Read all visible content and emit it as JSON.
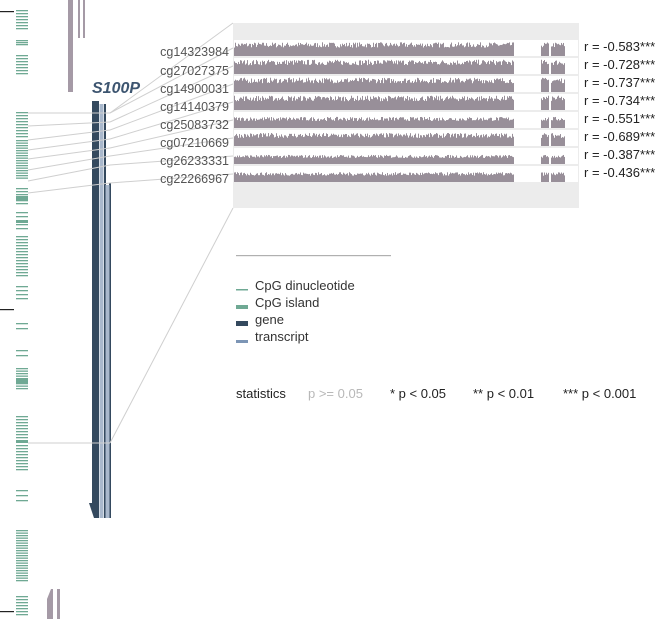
{
  "gene": {
    "name": "S100P"
  },
  "probes": [
    {
      "id": "cg14323984",
      "r_label": "r = -0.583***"
    },
    {
      "id": "cg27027375",
      "r_label": "r = -0.728***"
    },
    {
      "id": "cg14900031",
      "r_label": "r = -0.737***"
    },
    {
      "id": "cg14140379",
      "r_label": "r = -0.734***"
    },
    {
      "id": "cg25083732",
      "r_label": "r = -0.551***"
    },
    {
      "id": "cg07210669",
      "r_label": "r = -0.689***"
    },
    {
      "id": "cg26233331",
      "r_label": "r = -0.387***"
    },
    {
      "id": "cg22266967",
      "r_label": "r = -0.436***"
    }
  ],
  "legend": {
    "items": [
      {
        "label": "CpG dinucleotide",
        "color": "#6fa994"
      },
      {
        "label": "CpG island",
        "color": "#6fa994"
      },
      {
        "label": "gene",
        "color": "#34495e"
      },
      {
        "label": "transcript",
        "color": "#7c95b5"
      }
    ]
  },
  "statistics": {
    "label": "statistics",
    "levels": [
      {
        "text": "p >= 0.05",
        "color": "#b8b8b8"
      },
      {
        "text": "* p < 0.05",
        "color": "#222222"
      },
      {
        "text": "** p < 0.01",
        "color": "#222222"
      },
      {
        "text": "*** p < 0.001",
        "color": "#222222"
      }
    ]
  },
  "colors": {
    "cpg": "#6fa994",
    "gene": "#34495e",
    "transcript": "#7c95b5",
    "track": "#988f99",
    "panel": "#ececec",
    "connector": "#cfcfcf",
    "label": "#555555",
    "gene_label": "#3d5570"
  }
}
